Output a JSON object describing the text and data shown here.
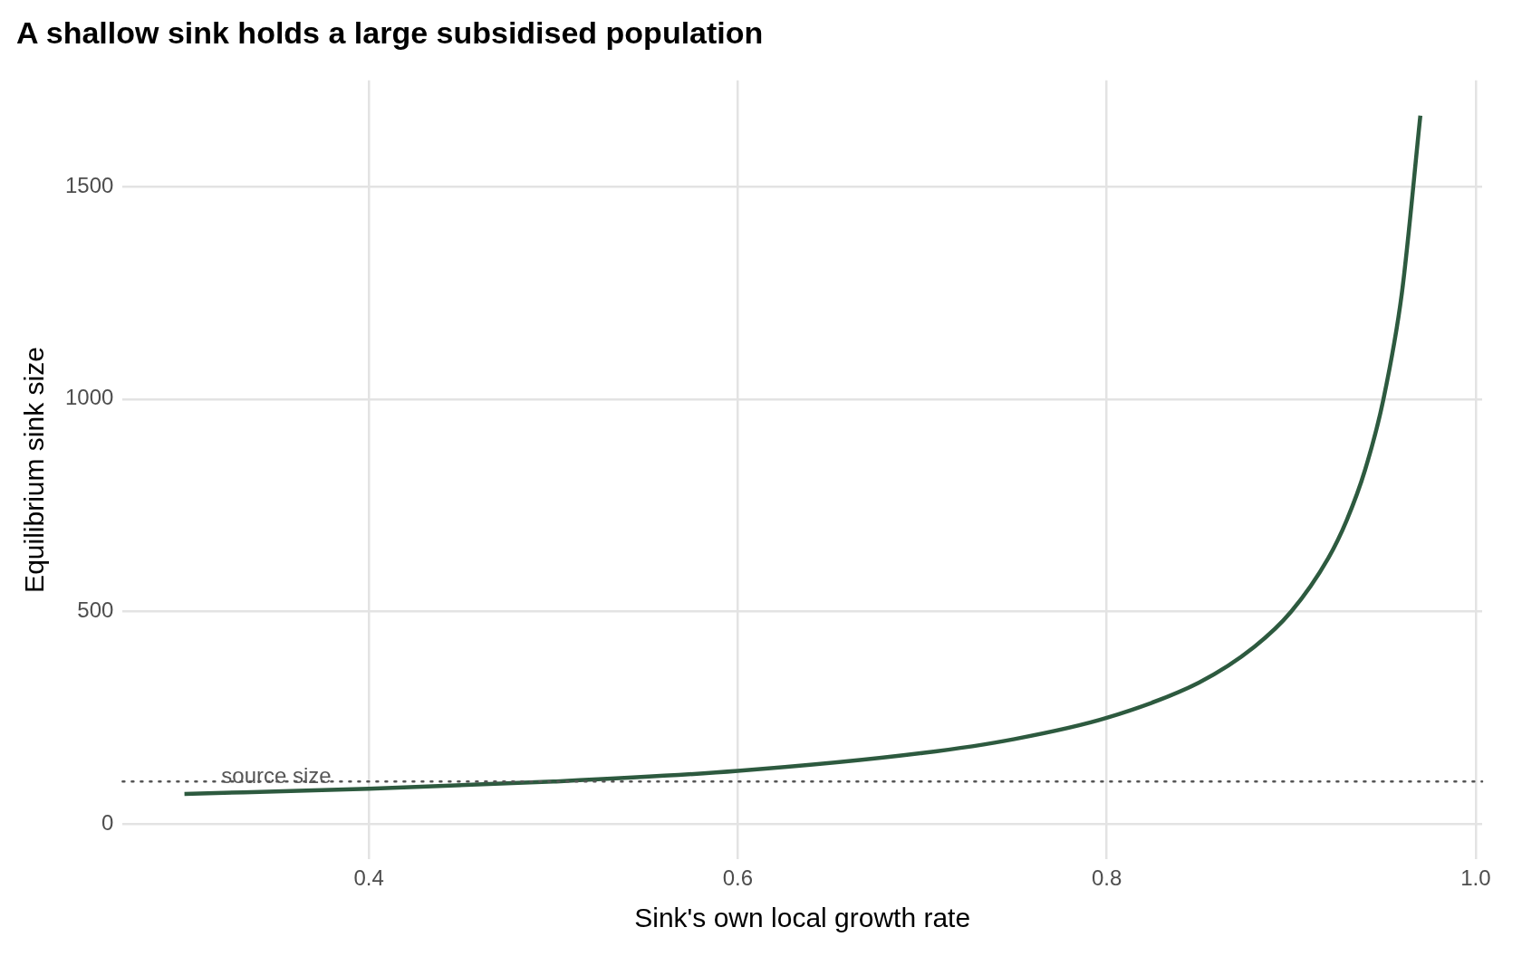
{
  "chart_data": {
    "type": "line",
    "title": "A shallow sink holds a large subsidised population",
    "xlabel": "Sink's own local growth rate",
    "ylabel": "Equilibrium sink size",
    "x": [
      0.3,
      0.4,
      0.5,
      0.6,
      0.7,
      0.75,
      0.8,
      0.85,
      0.88,
      0.9,
      0.92,
      0.93,
      0.94,
      0.95,
      0.96,
      0.97
    ],
    "series": [
      {
        "color": "#2d5a3f",
        "values": [
          71,
          83,
          100,
          125,
          167,
          200,
          250,
          333,
          417,
          500,
          625,
          714,
          833,
          1000,
          1250,
          1667
        ]
      }
    ],
    "xlim": [
      0.2665,
      1.0035
    ],
    "xticks": [
      0.4,
      0.6,
      0.8,
      {
        "value": 1,
        "label": "1.0"
      }
    ],
    "ylim": [
      -83,
      1750
    ],
    "yticks": [
      0,
      500,
      1000,
      1500
    ],
    "ref_lines": [
      {
        "axis": "y",
        "value": 100,
        "label": "source size",
        "color": "#555555",
        "line_style": "dotted"
      }
    ],
    "grid": true,
    "legend": false,
    "marker": "none",
    "line_style": "solid"
  }
}
